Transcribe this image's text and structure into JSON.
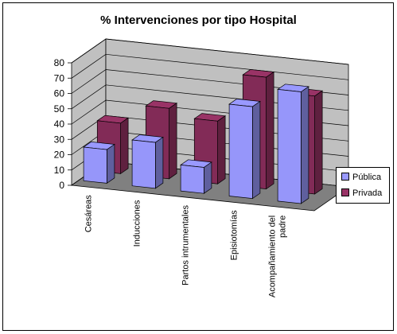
{
  "chart_data": {
    "type": "bar",
    "title": "% Intervenciones por tipo Hospital",
    "categories": [
      "Cesáreas",
      "Inducciones",
      "Partos intrumentales",
      "Episiotomías",
      "Acompañamiento del padre"
    ],
    "category_lines": [
      [
        "Cesáreas"
      ],
      [
        "Inducciones"
      ],
      [
        "Partos intrumentales"
      ],
      [
        "Episiotomías"
      ],
      [
        "Acompañamiento del",
        "padre"
      ]
    ],
    "yticks": [
      "0",
      "10",
      "20",
      "30",
      "40",
      "50",
      "60",
      "70",
      "80"
    ],
    "ylim": [
      0,
      80
    ],
    "series": [
      {
        "name": "Pública",
        "values": [
          22,
          30,
          17,
          60,
          73
        ],
        "color": "#9999ff"
      },
      {
        "name": "Privada",
        "values": [
          33,
          46,
          41,
          73,
          64
        ],
        "color": "#993366"
      }
    ],
    "legend_position": "right",
    "grid": true,
    "walls_color": "#c0c0c0",
    "floor_color": "#808080"
  }
}
